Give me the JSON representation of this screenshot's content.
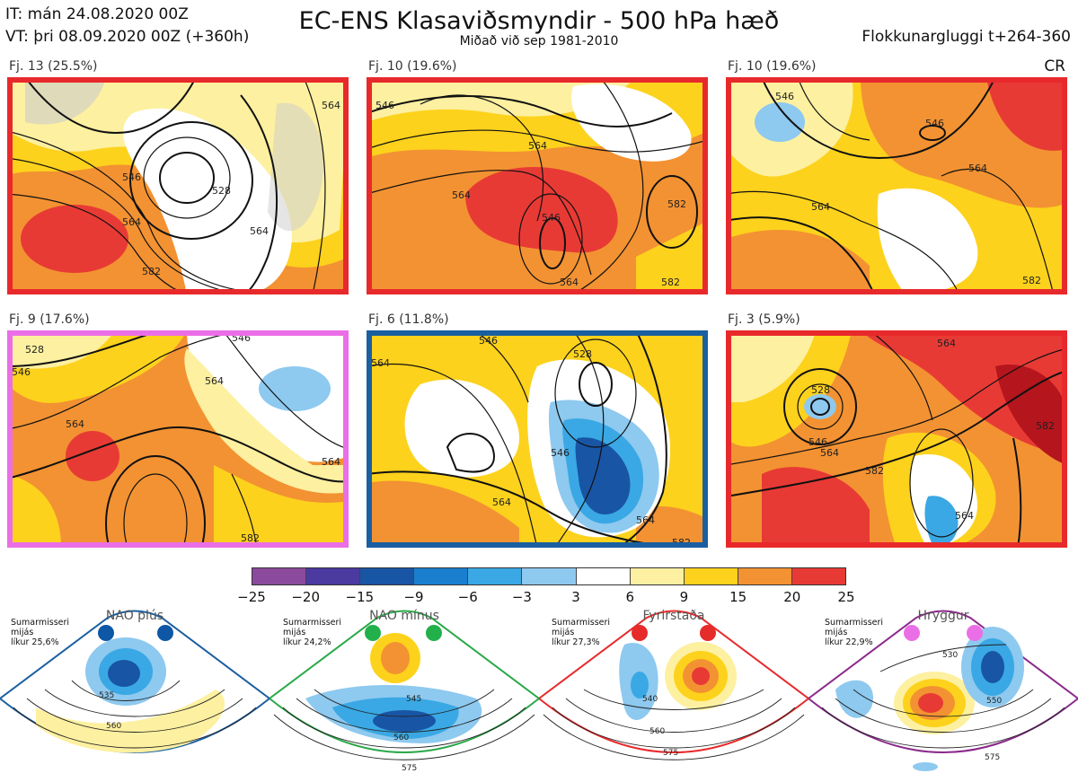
{
  "header": {
    "it": "IT: mán 24.08.2020 00Z",
    "vt": "VT: þri 08.09.2020 00Z  (+360h)",
    "title": "EC-ENS Klasaviðsmyndir - 500 hPa hæð",
    "subtitle": "Miðað við sep 1981-2010",
    "window": "Flokkunargluggi t+264-360",
    "cr": "CR"
  },
  "panels": [
    {
      "label": "Fj. 13 (25.5%)",
      "frame_color": "#e8292b",
      "contours": [
        "546",
        "564",
        "528",
        "564",
        "582",
        "564"
      ]
    },
    {
      "label": "Fj. 10 (19.6%)",
      "frame_color": "#e8292b",
      "contours": [
        "546",
        "564",
        "564",
        "546",
        "582",
        "564",
        "582"
      ]
    },
    {
      "label": "Fj. 10 (19.6%)",
      "frame_color": "#e8292b",
      "contours": [
        "546",
        "564",
        "546",
        "564",
        "582"
      ]
    },
    {
      "label": "Fj. 9 (17.6%)",
      "frame_color": "#ea6fe6",
      "contours": [
        "528",
        "546",
        "564",
        "564",
        "546",
        "564",
        "582"
      ]
    },
    {
      "label": "Fj. 6 (11.8%)",
      "frame_color": "#1a5fa0",
      "contours": [
        "564",
        "546",
        "528",
        "546",
        "564",
        "564",
        "582"
      ]
    },
    {
      "label": "Fj. 3 (5.9%)",
      "frame_color": "#e8292b",
      "contours": [
        "564",
        "528",
        "546",
        "564",
        "582",
        "564",
        "582"
      ]
    }
  ],
  "colorbar": {
    "ticks": [
      "−25",
      "−20",
      "−15",
      "−9",
      "−6",
      "−3",
      "3",
      "6",
      "9",
      "15",
      "20",
      "25"
    ],
    "colors": [
      "#8b4a9c",
      "#4b3aa0",
      "#1955a5",
      "#1a7fcf",
      "#3aa8e4",
      "#8ec9ef",
      "#ffffff",
      "#fdf0a0",
      "#fdd21c",
      "#f39232",
      "#e83a35",
      "#b5151d"
    ]
  },
  "regimes": [
    {
      "name": "NAO plús",
      "line1": "Sumarmisseri",
      "line2": "mijás",
      "line3": "líkur 25,6%",
      "color": "#1a5fa0",
      "dot_color": "#0d57a6",
      "contours": [
        "535",
        "560"
      ]
    },
    {
      "name": "NAO mínus",
      "line1": "Sumarmisseri",
      "line2": "mijás",
      "line3": "líkur 24,2%",
      "color": "#2aa848",
      "dot_color": "#22b04b",
      "contours": [
        "545",
        "560",
        "575"
      ]
    },
    {
      "name": "Fyrirstaða",
      "line1": "Sumarmisseri",
      "line2": "mijás",
      "line3": "líkur 27,3%",
      "color": "#e8292b",
      "dot_color": "#e62b2b",
      "contours": [
        "540",
        "560",
        "575"
      ]
    },
    {
      "name": "Hryggur",
      "line1": "Sumarmisseri",
      "line2": "mijás",
      "line3": "líkur 22,9%",
      "color": "#8a2a8a",
      "dot_color": "#ea6fe6",
      "contours": [
        "530",
        "550",
        "575"
      ]
    }
  ]
}
